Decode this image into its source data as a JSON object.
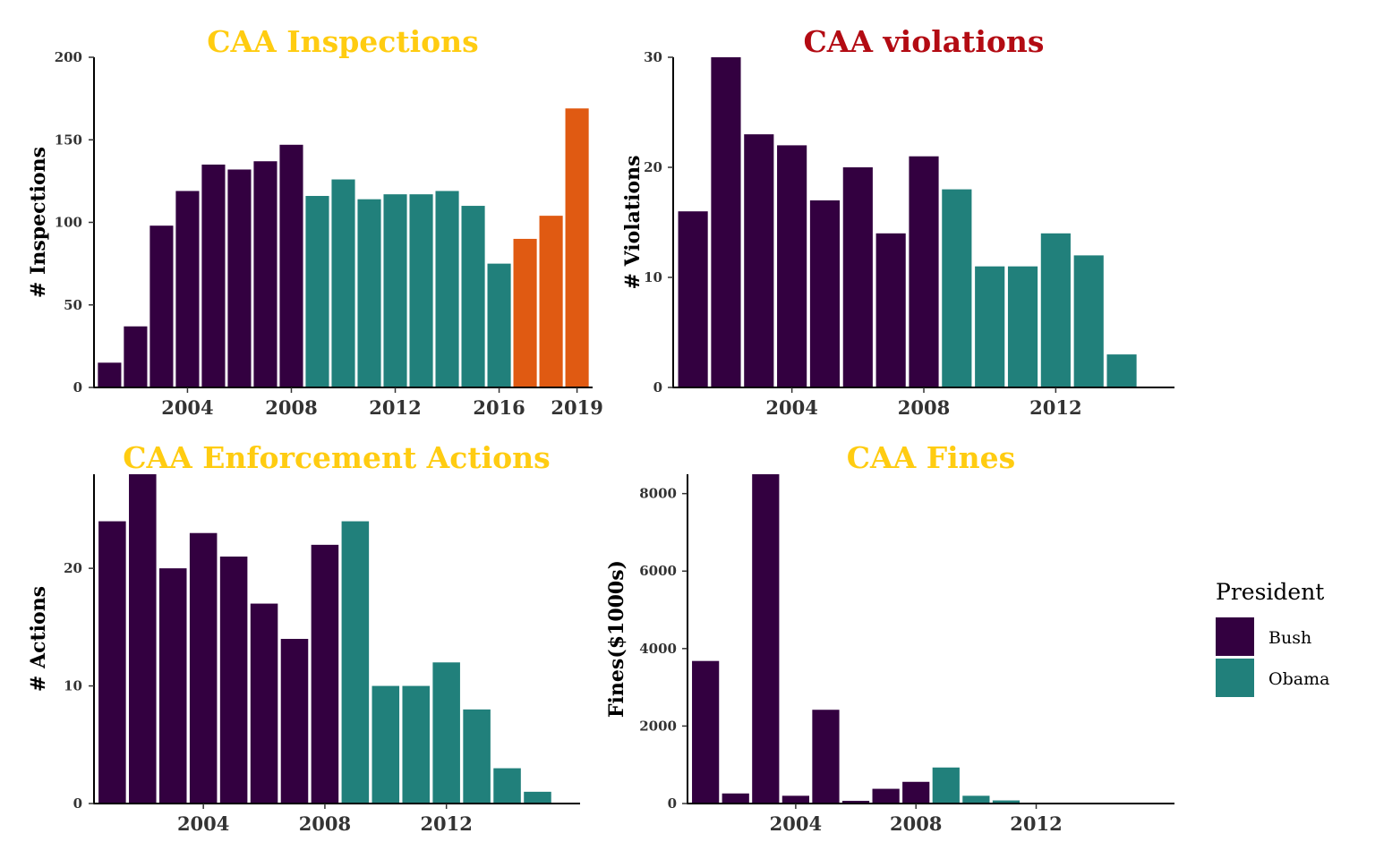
{
  "colors": {
    "bush": "#330040",
    "obama": "#21807b",
    "trump": "#e05a12",
    "title_yellow": "#ffcc11",
    "title_red": "#b30b13"
  },
  "legend": {
    "title": "President",
    "items": [
      {
        "label": "Bush",
        "color": "#330040"
      },
      {
        "label": "Obama",
        "color": "#21807b"
      }
    ]
  },
  "chart_data": [
    {
      "type": "bar",
      "title": "CAA Inspections",
      "title_color": "#ffcc11",
      "ylabel": "# Inspections",
      "xlabel": "",
      "ylim": [
        0,
        200
      ],
      "xlim": [
        2000.4,
        2019.6
      ],
      "yticks": [
        0,
        50,
        100,
        150,
        200
      ],
      "xticks": [
        2004,
        2008,
        2012,
        2016,
        2019
      ],
      "x": [
        2001,
        2002,
        2003,
        2004,
        2005,
        2006,
        2007,
        2008,
        2009,
        2010,
        2011,
        2012,
        2013,
        2014,
        2015,
        2016,
        2017,
        2018,
        2019
      ],
      "values": [
        15,
        37,
        98,
        119,
        135,
        132,
        137,
        147,
        116,
        126,
        114,
        117,
        117,
        119,
        110,
        75,
        90,
        104,
        169
      ],
      "president": [
        "Bush",
        "Bush",
        "Bush",
        "Bush",
        "Bush",
        "Bush",
        "Bush",
        "Bush",
        "Obama",
        "Obama",
        "Obama",
        "Obama",
        "Obama",
        "Obama",
        "Obama",
        "Obama",
        "Trump",
        "Trump",
        "Trump"
      ]
    },
    {
      "type": "bar",
      "title": "CAA violations",
      "title_color": "#b30b13",
      "ylabel": "# Violations",
      "xlabel": "",
      "ylim": [
        0,
        30
      ],
      "xlim": [
        2000.4,
        2015.6
      ],
      "yticks": [
        0,
        10,
        20,
        30
      ],
      "xticks": [
        2004,
        2008,
        2012
      ],
      "x": [
        2001,
        2002,
        2003,
        2004,
        2005,
        2006,
        2007,
        2008,
        2009,
        2010,
        2011,
        2012,
        2013,
        2014
      ],
      "values": [
        16,
        30,
        23,
        22,
        17,
        20,
        14,
        21,
        18,
        11,
        11,
        14,
        12,
        3
      ],
      "president": [
        "Bush",
        "Bush",
        "Bush",
        "Bush",
        "Bush",
        "Bush",
        "Bush",
        "Bush",
        "Obama",
        "Obama",
        "Obama",
        "Obama",
        "Obama",
        "Obama"
      ]
    },
    {
      "type": "bar",
      "title": "CAA Enforcement Actions",
      "title_color": "#ffcc11",
      "ylabel": "# Actions",
      "xlabel": "",
      "ylim": [
        0,
        28
      ],
      "xlim": [
        2000.4,
        2016.4
      ],
      "yticks": [
        0,
        10,
        20
      ],
      "xticks": [
        2004,
        2008,
        2012
      ],
      "x": [
        2001,
        2002,
        2003,
        2004,
        2005,
        2006,
        2007,
        2008,
        2009,
        2010,
        2011,
        2012,
        2013,
        2014,
        2015
      ],
      "values": [
        24,
        28,
        20,
        23,
        21,
        17,
        14,
        22,
        24,
        10,
        10,
        12,
        8,
        3,
        1
      ],
      "president": [
        "Bush",
        "Bush",
        "Bush",
        "Bush",
        "Bush",
        "Bush",
        "Bush",
        "Bush",
        "Obama",
        "Obama",
        "Obama",
        "Obama",
        "Obama",
        "Obama",
        "Obama"
      ]
    },
    {
      "type": "bar",
      "title": "CAA Fines",
      "title_color": "#ffcc11",
      "ylabel": "Fines($1000s)",
      "xlabel": "",
      "ylim": [
        0,
        8500
      ],
      "xlim": [
        2000.4,
        2016.6
      ],
      "yticks": [
        0,
        2000,
        4000,
        6000,
        8000
      ],
      "xticks": [
        2004,
        2008,
        2012
      ],
      "x": [
        2001,
        2002,
        2003,
        2004,
        2005,
        2006,
        2007,
        2008,
        2009,
        2010,
        2011,
        2012,
        2013,
        2014,
        2015
      ],
      "values": [
        3680,
        260,
        8500,
        200,
        2420,
        70,
        380,
        560,
        930,
        200,
        80,
        20,
        10,
        5,
        5
      ],
      "president": [
        "Bush",
        "Bush",
        "Bush",
        "Bush",
        "Bush",
        "Bush",
        "Bush",
        "Bush",
        "Obama",
        "Obama",
        "Obama",
        "Obama",
        "Obama",
        "Obama",
        "Obama"
      ]
    }
  ]
}
